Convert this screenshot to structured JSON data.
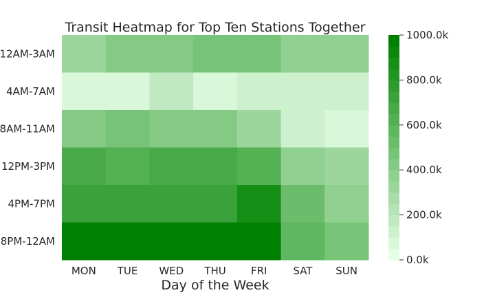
{
  "chart_data": {
    "type": "heatmap",
    "title": "Transit Heatmap for Top Ten Stations Together",
    "xlabel": "Day of the Week",
    "ylabel": "",
    "x_categories": [
      "MON",
      "TUE",
      "WED",
      "THU",
      "FRI",
      "SAT",
      "SUN"
    ],
    "y_categories": [
      "12AM-3AM",
      "4AM-7AM",
      "8AM-11AM",
      "12PM-3PM",
      "4PM-7PM",
      "8PM-12AM"
    ],
    "values": [
      [
        300000,
        400000,
        400000,
        450000,
        450000,
        350000,
        350000
      ],
      [
        50000,
        50000,
        150000,
        50000,
        100000,
        100000,
        100000
      ],
      [
        400000,
        450000,
        400000,
        400000,
        300000,
        100000,
        50000
      ],
      [
        650000,
        600000,
        650000,
        650000,
        600000,
        350000,
        300000
      ],
      [
        700000,
        700000,
        700000,
        700000,
        850000,
        500000,
        350000
      ],
      [
        950000,
        950000,
        950000,
        950000,
        950000,
        550000,
        450000
      ]
    ],
    "colorbar": {
      "min": 0,
      "max": 1000000,
      "ticks": [
        "0.0k",
        "200.0k",
        "400.0k",
        "600.0k",
        "800.0k",
        "1000.0k"
      ],
      "levels": 20,
      "colors": [
        "#e5ffe5",
        "#cef1ce",
        "#b7e4b7",
        "#a0d8a0",
        "#89cc89",
        "#71c071",
        "#5ab45a",
        "#43a743",
        "#2c9a2c",
        "#158e15",
        "#008000"
      ]
    }
  }
}
